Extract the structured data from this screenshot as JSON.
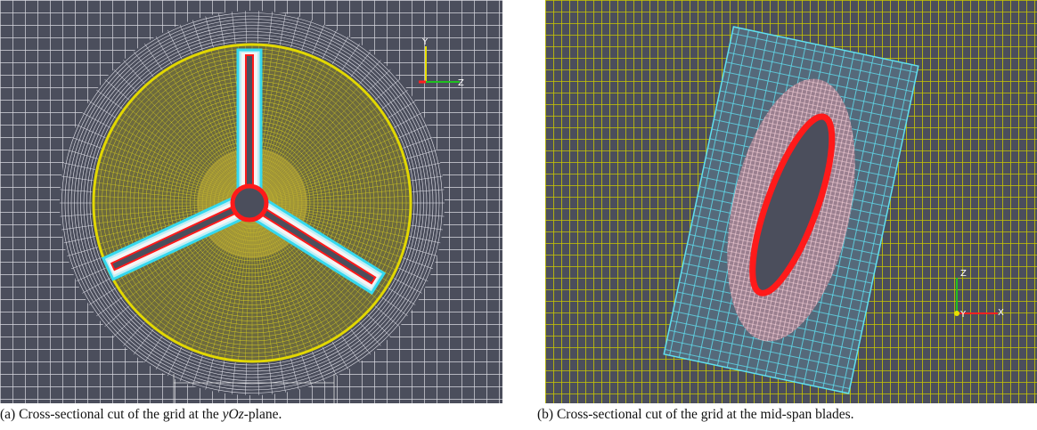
{
  "panels": [
    {
      "caption": {
        "prefix": "(a) Cross-sectional cut of the grid at the ",
        "italic": "yOz",
        "suffix": "-plane."
      },
      "axis_labels": [
        "Y",
        "Z"
      ]
    },
    {
      "caption": "(b) Cross-sectional cut of the grid at the mid-span blades.",
      "axis_labels": [
        "Z",
        "Y",
        "X"
      ]
    }
  ]
}
